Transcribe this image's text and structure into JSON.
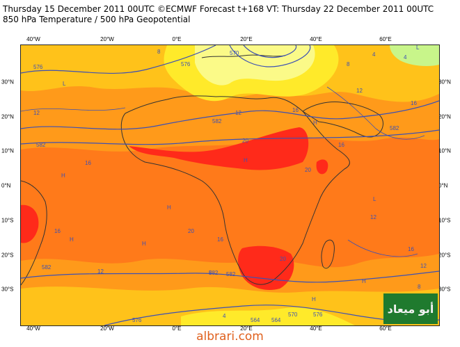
{
  "header": {
    "line1": "Thursday 15 December 2011 00UTC ©ECMWF Forecast t+168 VT: Thursday 22 December 2011 00UTC",
    "line2": "850 hPa Temperature / 500 hPa Geopotential"
  },
  "axes": {
    "top_longitudes": [
      "40°W",
      "20°W",
      "0°E",
      "20°E",
      "40°E",
      "60°E"
    ],
    "bottom_longitudes": [
      "40°W",
      "20°W",
      "0°E",
      "20°E",
      "40°E",
      "60°E"
    ],
    "left_latitudes": [
      "30°N",
      "20°N",
      "10°N",
      "0°N",
      "10°S",
      "20°S",
      "30°S"
    ],
    "right_latitudes": [
      "30°N",
      "20°N",
      "10°N",
      "0°N",
      "10°S",
      "20°S",
      "30°S"
    ]
  },
  "contour_labels": {
    "geopotential": [
      "576",
      "582",
      "582",
      "582",
      "576",
      "576",
      "564",
      "564",
      "570",
      "570",
      "576",
      "582",
      "582",
      "582"
    ],
    "temperature": [
      "12",
      "16",
      "20",
      "12",
      "16",
      "16",
      "20",
      "16",
      "12",
      "20",
      "16",
      "12",
      "8",
      "4",
      "4",
      "8",
      "16",
      "20",
      "16",
      "12",
      "8",
      "8",
      "4",
      "12"
    ]
  },
  "pressure_markers": [
    "H",
    "H",
    "H",
    "H",
    "H",
    "H",
    "H",
    "H",
    "L",
    "L",
    "L"
  ],
  "logo": {
    "text": "أبو ميعاد"
  },
  "footer": {
    "text": "albrari.com"
  },
  "colors": {
    "hot_red": "#ff2a1a",
    "deep_orange": "#ff7a1a",
    "orange": "#ff9a1a",
    "amber": "#ffc21a",
    "yellow": "#ffea2a",
    "pale_yellow": "#fbfa88",
    "light_green": "#c8f58a",
    "contour_blue": "#3c50b4",
    "coast": "#333333"
  }
}
